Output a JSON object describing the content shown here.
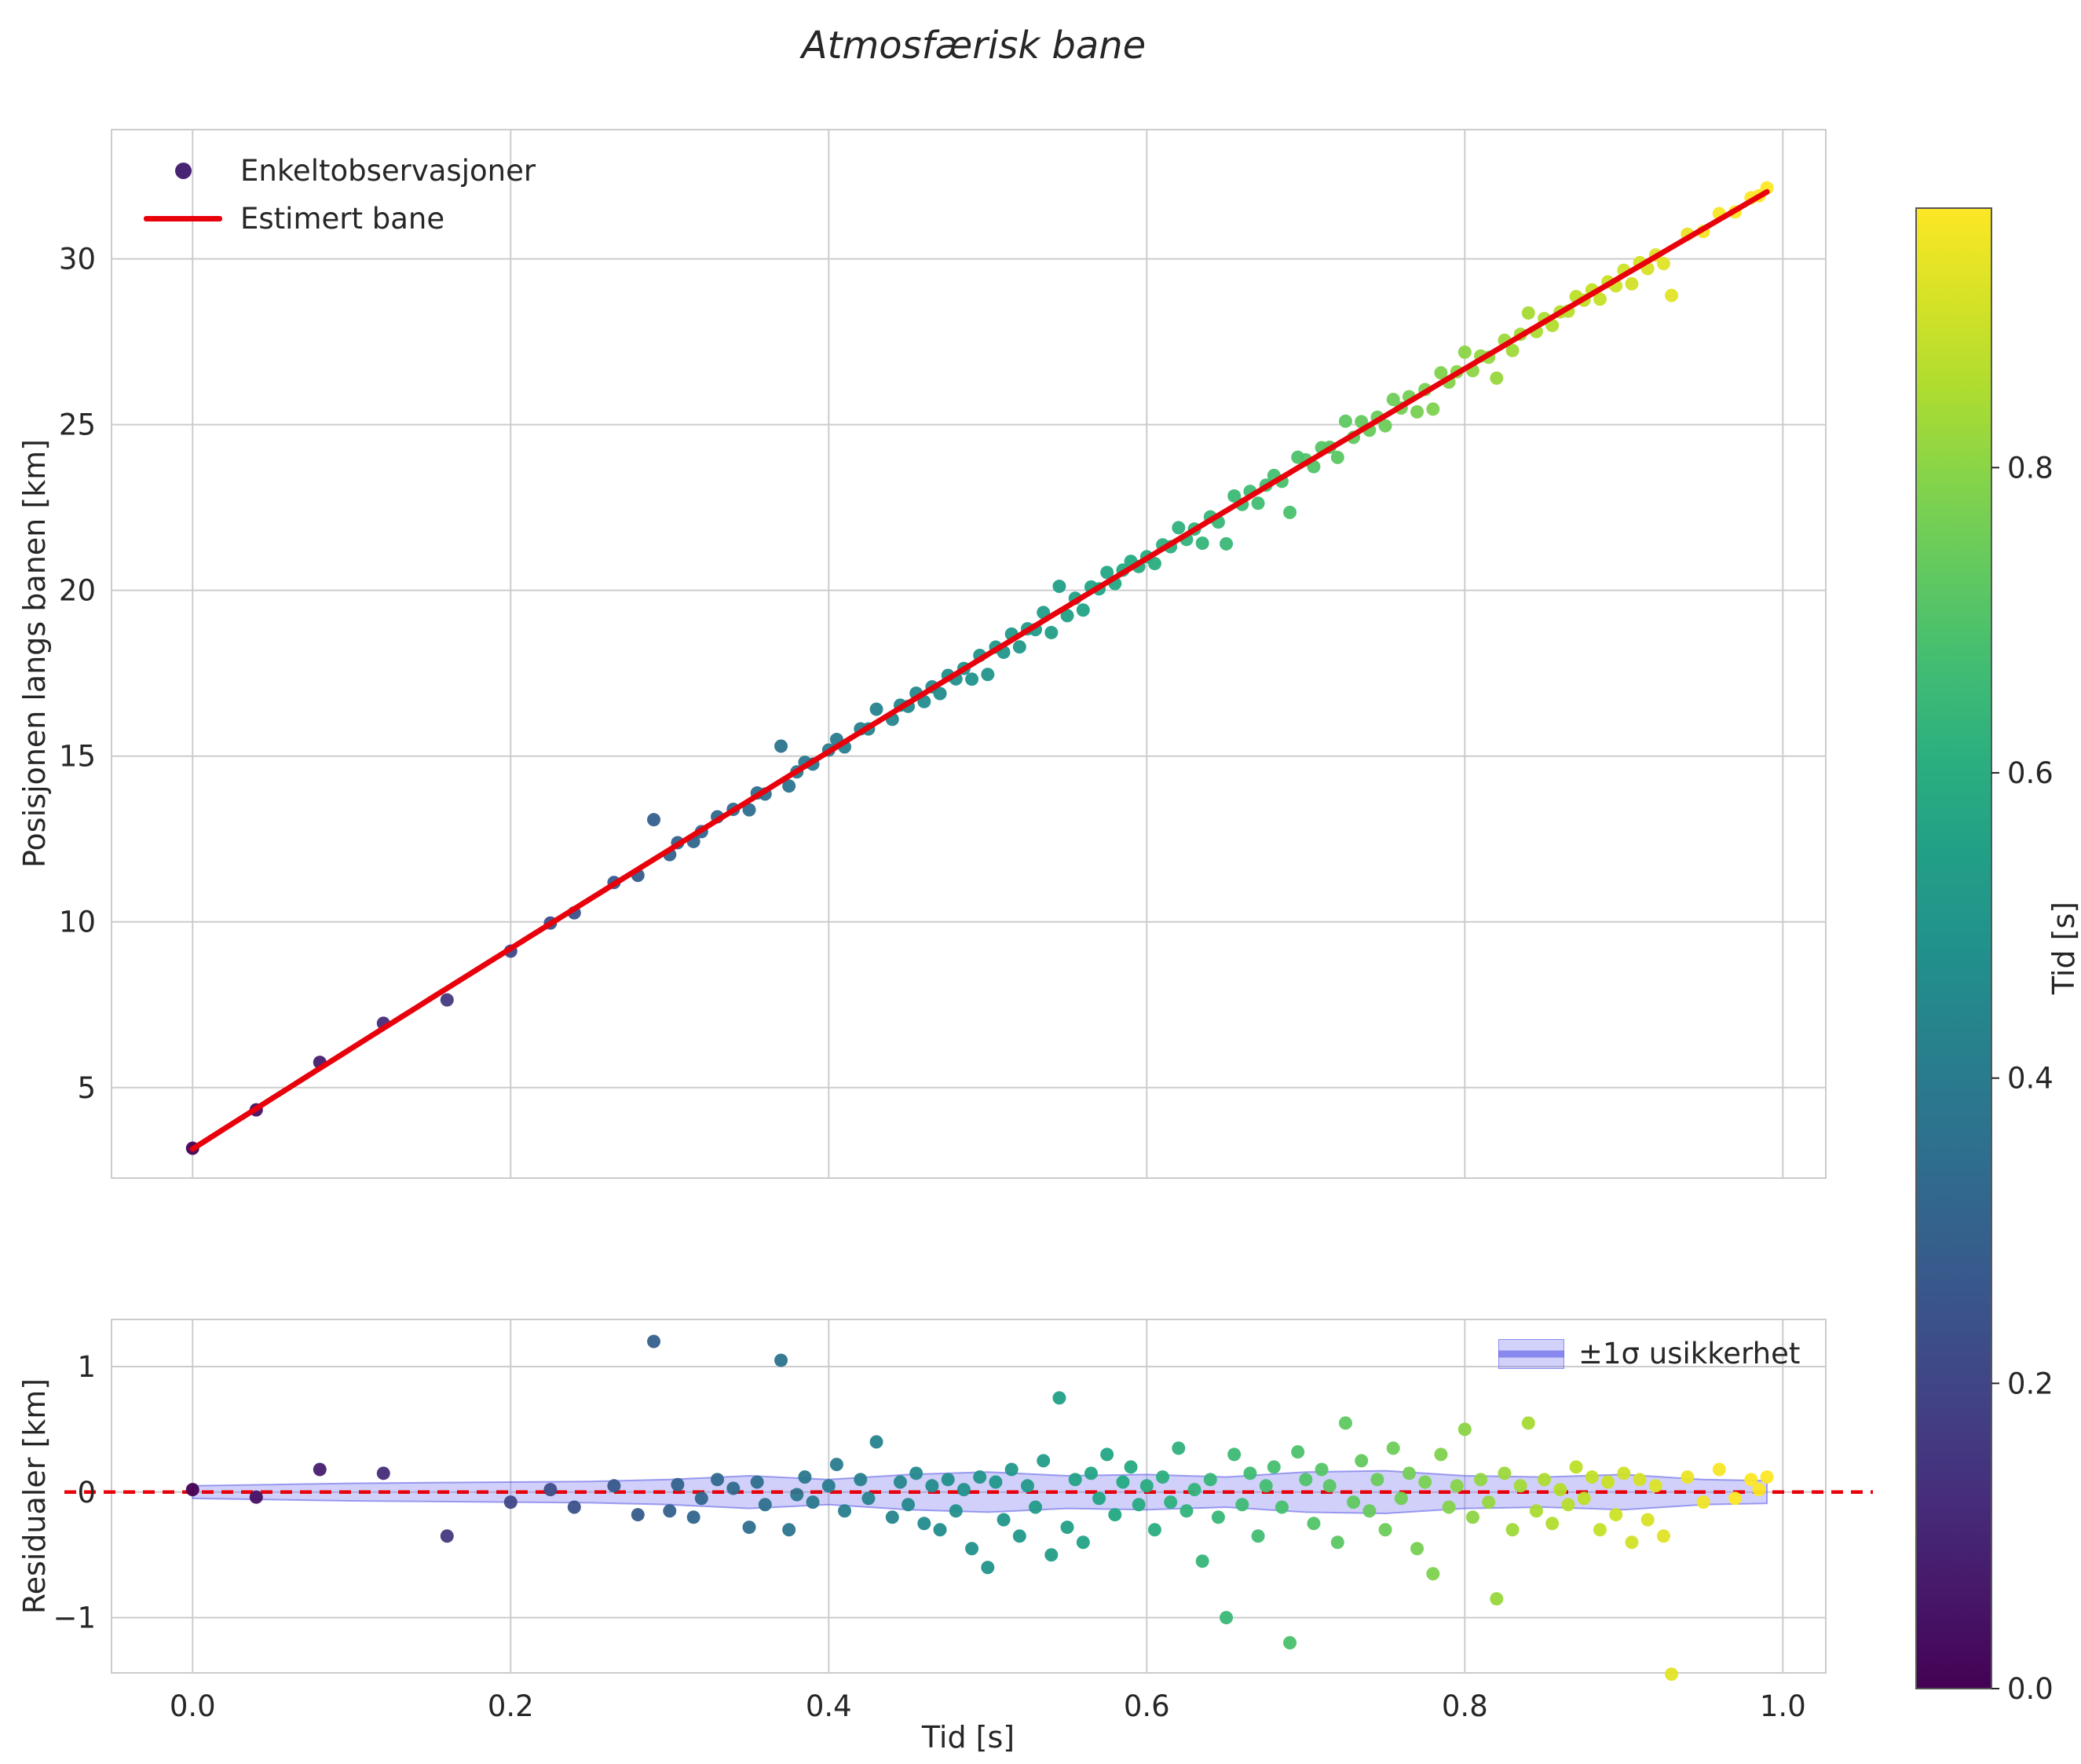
{
  "title": "Atmosfærisk bane",
  "main": {
    "ylabel": "Posisjonen langs banen [km]",
    "legend": [
      {
        "label": "Enkeltobservasjoner",
        "marker": "dot"
      },
      {
        "label": "Estimert bane",
        "marker": "line"
      }
    ],
    "yticks": [
      "5",
      "10",
      "15",
      "20",
      "25",
      "30"
    ],
    "ytick_values": [
      5,
      10,
      15,
      20,
      25,
      30
    ]
  },
  "residual": {
    "ylabel": "Residualer [km]",
    "xlabel": "Tid [s]",
    "legend_label": "±1σ usikkerhet",
    "yticks": [
      "−1",
      "0",
      "1"
    ],
    "ytick_values": [
      -1,
      0,
      1
    ]
  },
  "xaxis": {
    "ticks": [
      "0.0",
      "0.2",
      "0.4",
      "0.6",
      "0.8",
      "1.0"
    ],
    "tick_values": [
      0.0,
      0.2,
      0.4,
      0.6,
      0.8,
      1.0
    ]
  },
  "colorbar": {
    "label": "Tid [s]",
    "ticks": [
      "0.0",
      "0.2",
      "0.4",
      "0.6",
      "0.8"
    ],
    "tick_values": [
      0.0,
      0.2,
      0.4,
      0.6,
      0.8
    ],
    "vmin": 0.0,
    "vmax": 0.97
  },
  "colors": {
    "accent_line": "#e8000b",
    "band_fill": "#7070f0",
    "band_edge": "#5a5ae6",
    "legend_marker": "#482475",
    "grid": "#cccccc",
    "spine": "#cccccc",
    "text": "#262626"
  },
  "chart_data": {
    "type": "scatter",
    "title": "Atmosfærisk bane",
    "xlabel": "Tid [s]",
    "xlim": [
      -0.051,
      1.027
    ],
    "colormap": "viridis",
    "color_encodes": "Tid [s]",
    "panels": [
      {
        "name": "trajectory",
        "ylabel": "Posisjonen langs banen [km]",
        "ylim": [
          2.27,
          33.9
        ],
        "series": [
          "Enkeltobservasjoner",
          "Estimert bane"
        ],
        "grid": true
      },
      {
        "name": "residuals",
        "ylabel": "Residualer [km]",
        "ylim": [
          -1.44,
          1.375
        ],
        "zero_line": "red dashed",
        "band_legend": "±1σ usikkerhet",
        "grid": true
      }
    ],
    "fit_model": {
      "name": "Estimert bane",
      "formula": "pos_km = a + b*t + c*t^2",
      "coeffs": {
        "a": 3.15,
        "b": 30.5,
        "c": -1.35
      },
      "t_range": [
        0.0,
        0.99
      ]
    },
    "points_t_resid": [
      [
        0.0,
        0.02
      ],
      [
        0.04,
        -0.04
      ],
      [
        0.08,
        0.18
      ],
      [
        0.12,
        0.15
      ],
      [
        0.16,
        -0.35
      ],
      [
        0.2,
        -0.08
      ],
      [
        0.225,
        0.02
      ],
      [
        0.24,
        -0.12
      ],
      [
        0.265,
        0.05
      ],
      [
        0.28,
        -0.18
      ],
      [
        0.29,
        1.2
      ],
      [
        0.3,
        -0.15
      ],
      [
        0.305,
        0.06
      ],
      [
        0.315,
        -0.2
      ],
      [
        0.32,
        -0.05
      ],
      [
        0.33,
        0.1
      ],
      [
        0.34,
        0.03
      ],
      [
        0.35,
        -0.28
      ],
      [
        0.355,
        0.08
      ],
      [
        0.36,
        -0.1
      ],
      [
        0.37,
        1.05
      ],
      [
        0.375,
        -0.3
      ],
      [
        0.38,
        -0.02
      ],
      [
        0.385,
        0.12
      ],
      [
        0.39,
        -0.08
      ],
      [
        0.4,
        0.05
      ],
      [
        0.405,
        0.22
      ],
      [
        0.41,
        -0.15
      ],
      [
        0.42,
        0.1
      ],
      [
        0.425,
        -0.05
      ],
      [
        0.43,
        0.4
      ],
      [
        0.44,
        -0.2
      ],
      [
        0.445,
        0.08
      ],
      [
        0.45,
        -0.1
      ],
      [
        0.455,
        0.15
      ],
      [
        0.46,
        -0.25
      ],
      [
        0.465,
        0.05
      ],
      [
        0.47,
        -0.3
      ],
      [
        0.475,
        0.1
      ],
      [
        0.48,
        -0.15
      ],
      [
        0.485,
        0.02
      ],
      [
        0.49,
        -0.45
      ],
      [
        0.495,
        0.12
      ],
      [
        0.5,
        -0.6
      ],
      [
        0.505,
        0.08
      ],
      [
        0.51,
        -0.22
      ],
      [
        0.515,
        0.18
      ],
      [
        0.52,
        -0.35
      ],
      [
        0.525,
        0.05
      ],
      [
        0.53,
        -0.12
      ],
      [
        0.535,
        0.25
      ],
      [
        0.54,
        -0.5
      ],
      [
        0.545,
        0.75
      ],
      [
        0.55,
        -0.28
      ],
      [
        0.555,
        0.1
      ],
      [
        0.56,
        -0.4
      ],
      [
        0.565,
        0.15
      ],
      [
        0.57,
        -0.05
      ],
      [
        0.575,
        0.3
      ],
      [
        0.58,
        -0.18
      ],
      [
        0.585,
        0.08
      ],
      [
        0.59,
        0.2
      ],
      [
        0.595,
        -0.1
      ],
      [
        0.6,
        0.05
      ],
      [
        0.605,
        -0.3
      ],
      [
        0.61,
        0.12
      ],
      [
        0.615,
        -0.08
      ],
      [
        0.62,
        0.35
      ],
      [
        0.625,
        -0.15
      ],
      [
        0.63,
        0.02
      ],
      [
        0.635,
        -0.55
      ],
      [
        0.64,
        0.1
      ],
      [
        0.645,
        -0.2
      ],
      [
        0.65,
        -1.0
      ],
      [
        0.655,
        0.3
      ],
      [
        0.66,
        -0.1
      ],
      [
        0.665,
        0.15
      ],
      [
        0.67,
        -0.35
      ],
      [
        0.675,
        0.05
      ],
      [
        0.68,
        0.2
      ],
      [
        0.685,
        -0.12
      ],
      [
        0.69,
        -1.2
      ],
      [
        0.695,
        0.32
      ],
      [
        0.7,
        0.1
      ],
      [
        0.705,
        -0.25
      ],
      [
        0.71,
        0.18
      ],
      [
        0.715,
        0.05
      ],
      [
        0.72,
        -0.4
      ],
      [
        0.725,
        0.55
      ],
      [
        0.73,
        -0.08
      ],
      [
        0.735,
        0.25
      ],
      [
        0.74,
        -0.15
      ],
      [
        0.745,
        0.1
      ],
      [
        0.75,
        -0.3
      ],
      [
        0.755,
        0.35
      ],
      [
        0.76,
        -0.05
      ],
      [
        0.765,
        0.15
      ],
      [
        0.77,
        -0.45
      ],
      [
        0.775,
        0.08
      ],
      [
        0.78,
        -0.65
      ],
      [
        0.785,
        0.3
      ],
      [
        0.79,
        -0.12
      ],
      [
        0.795,
        0.05
      ],
      [
        0.8,
        0.5
      ],
      [
        0.805,
        -0.2
      ],
      [
        0.81,
        0.1
      ],
      [
        0.815,
        -0.08
      ],
      [
        0.82,
        -0.85
      ],
      [
        0.825,
        0.15
      ],
      [
        0.83,
        -0.3
      ],
      [
        0.835,
        0.05
      ],
      [
        0.84,
        0.55
      ],
      [
        0.845,
        -0.15
      ],
      [
        0.85,
        0.1
      ],
      [
        0.855,
        -0.25
      ],
      [
        0.86,
        0.02
      ],
      [
        0.865,
        -0.1
      ],
      [
        0.87,
        0.2
      ],
      [
        0.875,
        -0.05
      ],
      [
        0.88,
        0.12
      ],
      [
        0.885,
        -0.3
      ],
      [
        0.89,
        0.08
      ],
      [
        0.895,
        -0.18
      ],
      [
        0.9,
        0.15
      ],
      [
        0.905,
        -0.4
      ],
      [
        0.91,
        0.1
      ],
      [
        0.915,
        -0.22
      ],
      [
        0.92,
        0.05
      ],
      [
        0.925,
        -0.35
      ],
      [
        0.93,
        -1.45
      ],
      [
        0.94,
        0.12
      ],
      [
        0.95,
        -0.08
      ],
      [
        0.96,
        0.18
      ],
      [
        0.97,
        -0.05
      ],
      [
        0.98,
        0.1
      ],
      [
        0.985,
        0.02
      ],
      [
        0.99,
        0.12
      ]
    ],
    "band_t_halfwidth": [
      [
        0.0,
        0.05
      ],
      [
        0.05,
        0.06
      ],
      [
        0.1,
        0.07
      ],
      [
        0.15,
        0.075
      ],
      [
        0.2,
        0.08
      ],
      [
        0.25,
        0.085
      ],
      [
        0.3,
        0.1
      ],
      [
        0.35,
        0.13
      ],
      [
        0.4,
        0.1
      ],
      [
        0.45,
        0.14
      ],
      [
        0.5,
        0.16
      ],
      [
        0.55,
        0.13
      ],
      [
        0.6,
        0.14
      ],
      [
        0.65,
        0.12
      ],
      [
        0.7,
        0.16
      ],
      [
        0.75,
        0.17
      ],
      [
        0.8,
        0.13
      ],
      [
        0.85,
        0.12
      ],
      [
        0.9,
        0.14
      ],
      [
        0.95,
        0.1
      ],
      [
        0.99,
        0.09
      ]
    ]
  }
}
